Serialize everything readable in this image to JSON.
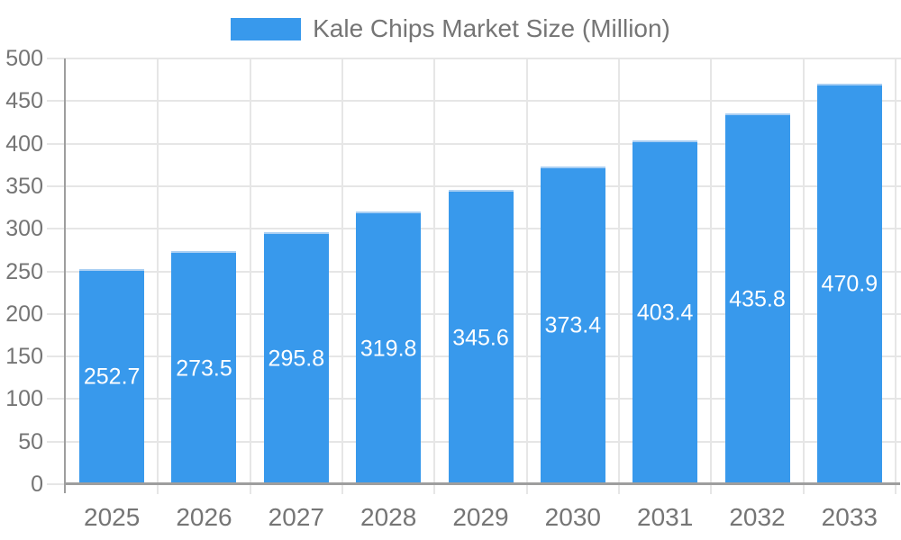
{
  "legend": {
    "label": "Kale Chips Market Size (Million)",
    "swatch_color": "#3899EC"
  },
  "colors": {
    "background": "#FFFFFF",
    "bar": "#3899EC",
    "bar_top_edge": "#A8CEF3",
    "grid": "#E6E6E6",
    "axis": "#9E9E9E",
    "axis_text": "#757575",
    "data_label_text": "#FFFFFF"
  },
  "chart_data": {
    "type": "bar",
    "title": "Kale Chips Market Size (Million)",
    "categories": [
      "2025",
      "2026",
      "2027",
      "2028",
      "2029",
      "2030",
      "2031",
      "2032",
      "2033"
    ],
    "series": [
      {
        "name": "Kale Chips Market Size (Million)",
        "color": "#3899EC",
        "values": [
          252.7,
          273.5,
          295.8,
          319.8,
          345.6,
          373.4,
          403.4,
          435.8,
          470.9
        ]
      }
    ],
    "data_labels": [
      "252.7",
      "273.5",
      "295.8",
      "319.8",
      "345.6",
      "373.4",
      "403.4",
      "435.8",
      "470.9"
    ],
    "xlabel": "",
    "ylabel": "",
    "ylim": [
      0,
      500
    ],
    "yticks": [
      0,
      50,
      100,
      150,
      200,
      250,
      300,
      350,
      400,
      450,
      500
    ],
    "grid": true,
    "legend_position": "top"
  }
}
